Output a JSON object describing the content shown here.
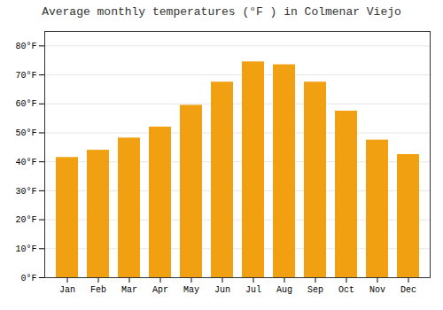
{
  "chart_data": {
    "type": "bar",
    "title": "Average monthly temperatures (°F ) in Colmenar Viejo",
    "categories": [
      "Jan",
      "Feb",
      "Mar",
      "Apr",
      "May",
      "Jun",
      "Jul",
      "Aug",
      "Sep",
      "Oct",
      "Nov",
      "Dec"
    ],
    "values": [
      41.5,
      44.0,
      48.2,
      52.0,
      59.5,
      67.5,
      74.5,
      73.5,
      67.5,
      57.5,
      47.5,
      42.5
    ],
    "color": "#F0A010",
    "ylim": [
      0,
      85
    ],
    "yticks": [
      {
        "value": 0,
        "label": "0°F"
      },
      {
        "value": 10,
        "label": "10°F"
      },
      {
        "value": 20,
        "label": "20°F"
      },
      {
        "value": 30,
        "label": "30°F"
      },
      {
        "value": 40,
        "label": "40°F"
      },
      {
        "value": 50,
        "label": "50°F"
      },
      {
        "value": 60,
        "label": "60°F"
      },
      {
        "value": 70,
        "label": "70°F"
      },
      {
        "value": 80,
        "label": "80°F"
      }
    ],
    "grid": true
  }
}
